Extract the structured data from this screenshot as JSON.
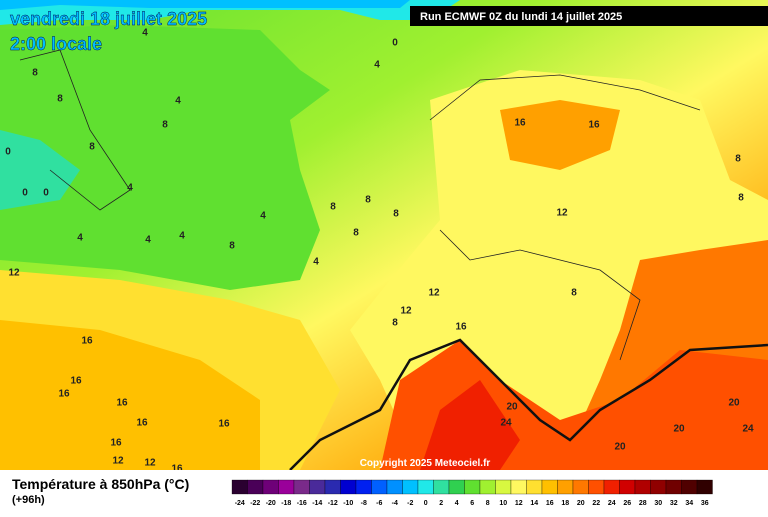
{
  "header": {
    "date": "vendredi 18 juillet 2025",
    "time": "2:00 locale",
    "run": "Run ECMWF 0Z du lundi 14 juillet 2025"
  },
  "copyright": "Copyright 2025 Meteociel.fr",
  "legend": {
    "title": "Température à 850hPa (°C)",
    "lead": "(+96h)",
    "steps": [
      {
        "value": -24,
        "color": "#2a0030"
      },
      {
        "value": -22,
        "color": "#4a0058"
      },
      {
        "value": -20,
        "color": "#6e0078"
      },
      {
        "value": -18,
        "color": "#9a009a"
      },
      {
        "value": -16,
        "color": "#7a2a8a"
      },
      {
        "value": -14,
        "color": "#4a2a9a"
      },
      {
        "value": -12,
        "color": "#2a2ab0"
      },
      {
        "value": -10,
        "color": "#0000d0"
      },
      {
        "value": -8,
        "color": "#0020f0"
      },
      {
        "value": -6,
        "color": "#0060ff"
      },
      {
        "value": -4,
        "color": "#0090ff"
      },
      {
        "value": -2,
        "color": "#00c0ff"
      },
      {
        "value": 0,
        "color": "#20e8e8"
      },
      {
        "value": 2,
        "color": "#30e0a0"
      },
      {
        "value": 4,
        "color": "#30d050"
      },
      {
        "value": 6,
        "color": "#60e030"
      },
      {
        "value": 8,
        "color": "#a0f030"
      },
      {
        "value": 10,
        "color": "#d8f840"
      },
      {
        "value": 12,
        "color": "#fff860"
      },
      {
        "value": 14,
        "color": "#ffe030"
      },
      {
        "value": 16,
        "color": "#ffc000"
      },
      {
        "value": 18,
        "color": "#ffa000"
      },
      {
        "value": 20,
        "color": "#ff7800"
      },
      {
        "value": 22,
        "color": "#ff5000"
      },
      {
        "value": 24,
        "color": "#f02000"
      },
      {
        "value": 26,
        "color": "#d00000"
      },
      {
        "value": 28,
        "color": "#b00000"
      },
      {
        "value": 30,
        "color": "#900000"
      },
      {
        "value": 32,
        "color": "#700000"
      },
      {
        "value": 34,
        "color": "#500000"
      },
      {
        "value": 36,
        "color": "#300000"
      }
    ]
  },
  "map_labels": [
    "4",
    "0",
    "4",
    "8",
    "8",
    "4",
    "8",
    "8",
    "16",
    "16",
    "0",
    "0",
    "0",
    "4",
    "8",
    "8",
    "4",
    "8",
    "8",
    "8",
    "12",
    "4",
    "4",
    "4",
    "8",
    "8",
    "4",
    "12",
    "8",
    "12",
    "12",
    "8",
    "16",
    "16",
    "16",
    "16",
    "16",
    "20",
    "24",
    "20",
    "16",
    "16",
    "20",
    "24",
    "16",
    "20",
    "12",
    "12",
    "16"
  ]
}
